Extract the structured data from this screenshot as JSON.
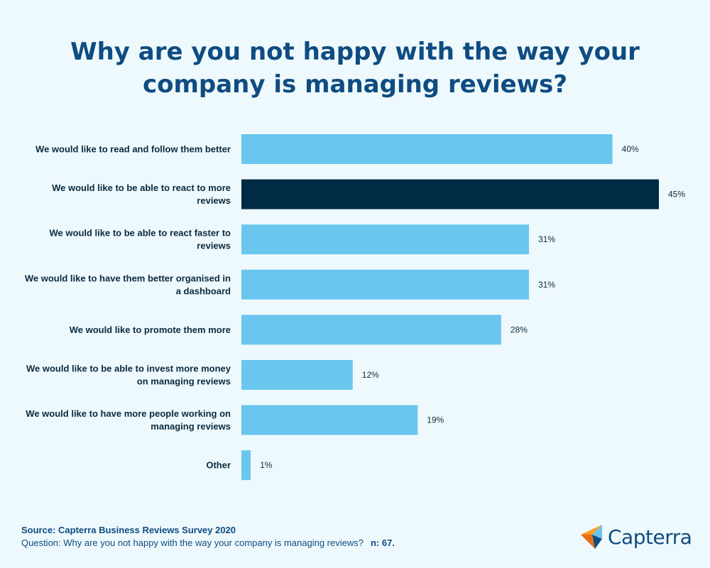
{
  "title_lines": [
    "Why are you not happy with the way your",
    "company is managing reviews?"
  ],
  "chart_data": {
    "type": "bar",
    "orientation": "horizontal",
    "categories": [
      [
        "We would like to read and follow them better"
      ],
      [
        "We would like to be able to react to more",
        "reviews"
      ],
      [
        "We would like to be able to react faster to",
        "reviews"
      ],
      [
        "We would like to have them better organised in",
        "a dashboard"
      ],
      [
        "We would like to promote them more"
      ],
      [
        "We would like to be able to invest more money",
        "on managing reviews"
      ],
      [
        "We would like to have more people working on",
        "managing reviews"
      ],
      [
        "Other"
      ]
    ],
    "values": [
      40,
      45,
      31,
      31,
      28,
      12,
      19,
      1
    ],
    "value_labels": [
      "40%",
      "45%",
      "31%",
      "31%",
      "28%",
      "12%",
      "19%",
      "1%"
    ],
    "highlight_index": 1,
    "xlim": [
      0,
      45
    ],
    "grid": false,
    "colors": {
      "bar": "#6ac6ee",
      "highlight": "#002b45"
    }
  },
  "footer": {
    "source": "Source: Capterra Business Reviews Survey 2020",
    "question": "Question: Why are you not happy with the way your company is managing reviews?",
    "n": "n: 67."
  },
  "logo": {
    "text": "Capterra",
    "icon": "capterra-arrow-icon",
    "colors": [
      "#ff9d28",
      "#68c5ed",
      "#0f4c81"
    ]
  }
}
